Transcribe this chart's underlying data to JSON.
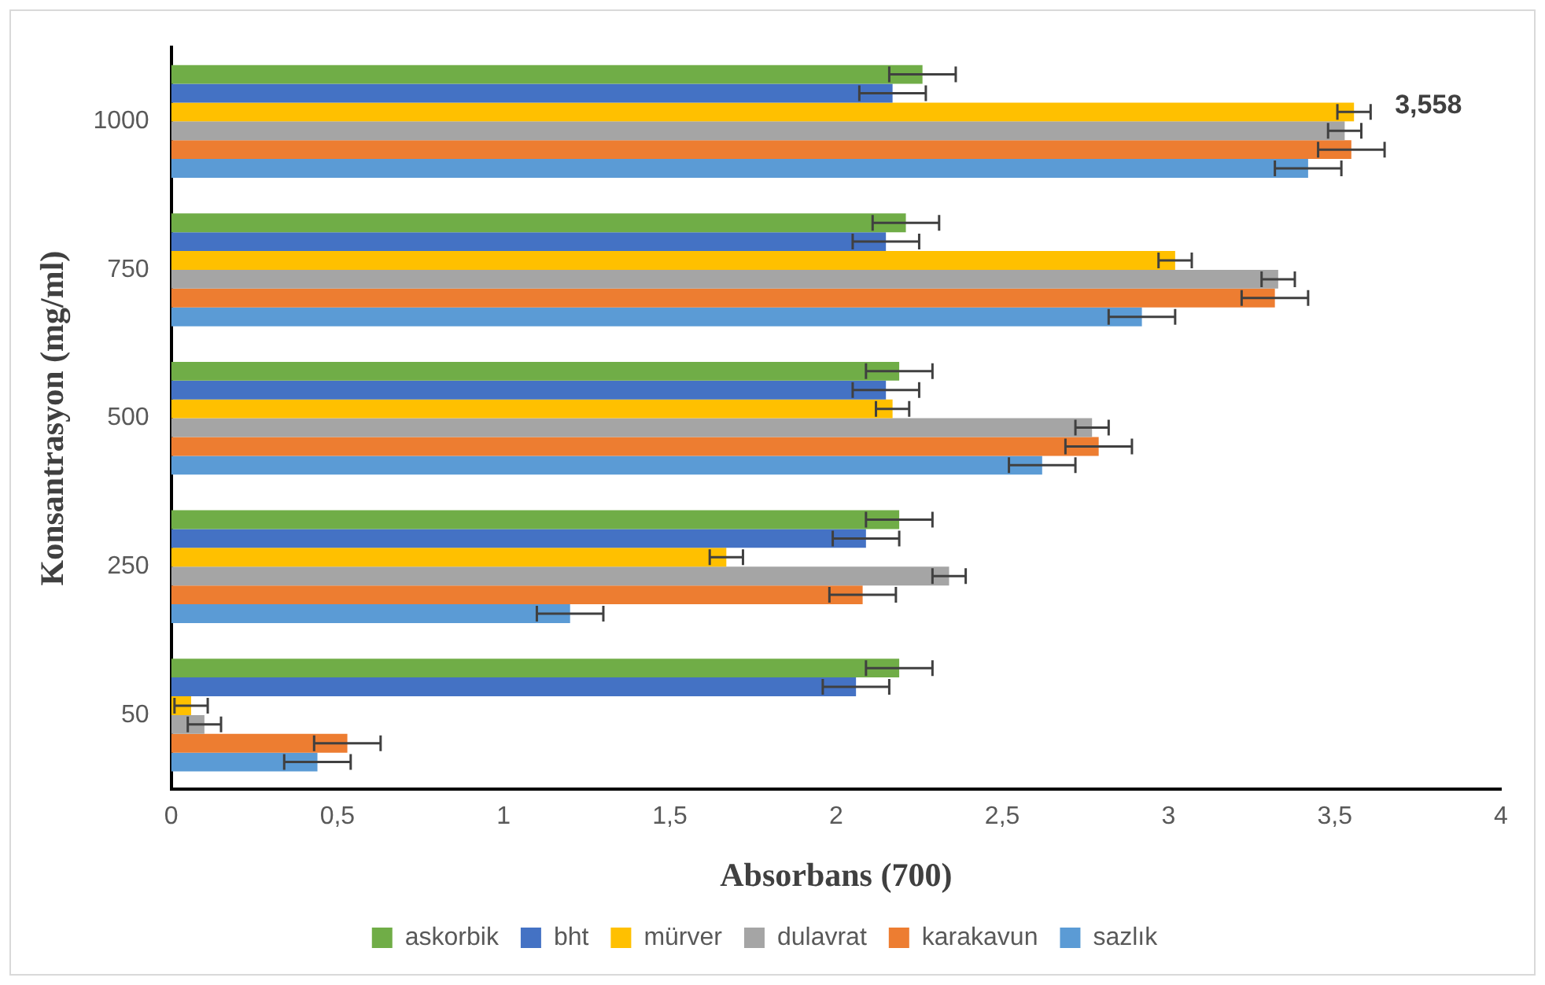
{
  "chart_data": {
    "type": "bar",
    "orientation": "horizontal",
    "xlabel": "Absorbans (700)",
    "ylabel": "Konsantrasyon (mg/ml)",
    "categories": [
      "1000",
      "750",
      "500",
      "250",
      "50"
    ],
    "xlim": [
      0,
      4
    ],
    "xticks": [
      0,
      {
        "value": 0.5,
        "label": "0,5"
      },
      1,
      {
        "value": 1.5,
        "label": "1,5"
      },
      2,
      {
        "value": 2.5,
        "label": "2,5"
      },
      3,
      {
        "value": 3.5,
        "label": "3,5"
      },
      4
    ],
    "grid": false,
    "legend": "bottom",
    "annotations": [
      {
        "text": "3,558",
        "x": 3.558,
        "y": "1000"
      }
    ],
    "series": [
      {
        "name": "askorbik",
        "color": "#70ad47",
        "values": [
          2.26,
          2.21,
          2.19,
          2.19,
          2.19
        ],
        "errors": [
          0.1,
          0.1,
          0.1,
          0.1,
          0.1
        ]
      },
      {
        "name": "bht",
        "color": "#4472c4",
        "values": [
          2.17,
          2.15,
          2.15,
          2.09,
          2.06
        ],
        "errors": [
          0.1,
          0.1,
          0.1,
          0.1,
          0.1
        ]
      },
      {
        "name": "mürver",
        "color": "#ffc000",
        "values": [
          3.558,
          3.02,
          2.17,
          1.67,
          0.06
        ],
        "errors": [
          0.05,
          0.05,
          0.05,
          0.05,
          0.05
        ]
      },
      {
        "name": "dulavrat",
        "color": "#a5a5a5",
        "values": [
          3.53,
          3.33,
          2.77,
          2.34,
          0.1
        ],
        "errors": [
          0.05,
          0.05,
          0.05,
          0.05,
          0.05
        ]
      },
      {
        "name": "karakavun",
        "color": "#ed7d31",
        "values": [
          3.55,
          3.32,
          2.79,
          2.08,
          0.53
        ],
        "errors": [
          0.1,
          0.1,
          0.1,
          0.1,
          0.1
        ]
      },
      {
        "name": "sazlık",
        "color": "#5b9bd5",
        "values": [
          3.42,
          2.92,
          2.62,
          1.2,
          0.44
        ],
        "errors": [
          0.1,
          0.1,
          0.1,
          0.1,
          0.1
        ]
      }
    ]
  }
}
